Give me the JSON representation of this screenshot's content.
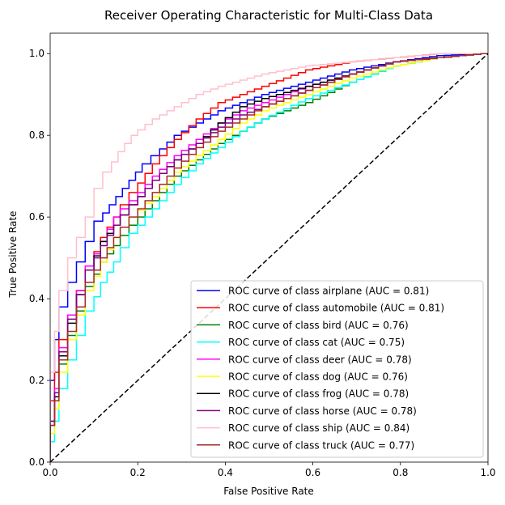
{
  "chart_data": {
    "type": "line",
    "title": "Receiver Operating Characteristic for Multi-Class Data",
    "xlabel": "False Positive Rate",
    "ylabel": "True Positive Rate",
    "xlim": [
      0.0,
      1.0
    ],
    "ylim": [
      0.0,
      1.05
    ],
    "xticks": [
      "0.0",
      "0.2",
      "0.4",
      "0.6",
      "0.8",
      "1.0"
    ],
    "yticks": [
      "0.0",
      "0.2",
      "0.4",
      "0.6",
      "0.8",
      "1.0"
    ],
    "grid": false,
    "legend_position": "lower-right",
    "series": [
      {
        "name": "ROC curve of class airplane (AUC = 0.81)",
        "color": "#0000ff",
        "x": [
          0,
          0,
          0.01,
          0.02,
          0.04,
          0.06,
          0.08,
          0.1,
          0.12,
          0.15,
          0.18,
          0.21,
          0.25,
          0.3,
          0.35,
          0.4,
          0.5,
          0.6,
          0.7,
          0.8,
          0.9,
          1.0
        ],
        "y": [
          0,
          0.12,
          0.2,
          0.3,
          0.38,
          0.44,
          0.49,
          0.54,
          0.59,
          0.63,
          0.67,
          0.71,
          0.75,
          0.8,
          0.83,
          0.86,
          0.9,
          0.93,
          0.96,
          0.98,
          0.995,
          1.0
        ]
      },
      {
        "name": "ROC curve of class automobile (AUC = 0.81)",
        "color": "#ff0000",
        "x": [
          0,
          0,
          0.01,
          0.02,
          0.04,
          0.06,
          0.08,
          0.1,
          0.13,
          0.16,
          0.2,
          0.25,
          0.3,
          0.35,
          0.4,
          0.5,
          0.6,
          0.7,
          0.8,
          0.9,
          1.0
        ],
        "y": [
          0,
          0.08,
          0.15,
          0.22,
          0.3,
          0.36,
          0.42,
          0.48,
          0.55,
          0.6,
          0.66,
          0.73,
          0.79,
          0.84,
          0.88,
          0.92,
          0.96,
          0.98,
          0.99,
          1.0,
          1.0
        ]
      },
      {
        "name": "ROC curve of class bird (AUC = 0.76)",
        "color": "#008000",
        "x": [
          0,
          0.01,
          0.02,
          0.04,
          0.06,
          0.08,
          0.1,
          0.13,
          0.16,
          0.2,
          0.25,
          0.3,
          0.35,
          0.4,
          0.45,
          0.5,
          0.6,
          0.7,
          0.8,
          0.9,
          1.0
        ],
        "y": [
          0,
          0.1,
          0.16,
          0.24,
          0.31,
          0.37,
          0.43,
          0.49,
          0.53,
          0.58,
          0.64,
          0.7,
          0.74,
          0.78,
          0.81,
          0.84,
          0.88,
          0.93,
          0.97,
          0.99,
          1.0
        ]
      },
      {
        "name": "ROC curve of class cat (AUC = 0.75)",
        "color": "#00ffff",
        "x": [
          0,
          0.01,
          0.02,
          0.04,
          0.06,
          0.08,
          0.1,
          0.13,
          0.16,
          0.2,
          0.25,
          0.3,
          0.35,
          0.4,
          0.45,
          0.5,
          0.6,
          0.7,
          0.8,
          0.9,
          1.0
        ],
        "y": [
          0,
          0.05,
          0.1,
          0.18,
          0.25,
          0.31,
          0.37,
          0.44,
          0.49,
          0.56,
          0.62,
          0.68,
          0.73,
          0.77,
          0.81,
          0.84,
          0.89,
          0.93,
          0.97,
          0.99,
          1.0
        ]
      },
      {
        "name": "ROC curve of class deer (AUC = 0.78)",
        "color": "#ff00ff",
        "x": [
          0,
          0.01,
          0.02,
          0.04,
          0.06,
          0.08,
          0.1,
          0.13,
          0.16,
          0.2,
          0.25,
          0.3,
          0.35,
          0.4,
          0.45,
          0.5,
          0.6,
          0.7,
          0.8,
          0.9,
          1.0
        ],
        "y": [
          0,
          0.1,
          0.18,
          0.28,
          0.36,
          0.42,
          0.48,
          0.54,
          0.6,
          0.64,
          0.7,
          0.75,
          0.79,
          0.83,
          0.86,
          0.88,
          0.92,
          0.95,
          0.98,
          0.99,
          1.0
        ]
      },
      {
        "name": "ROC curve of class dog (AUC = 0.76)",
        "color": "#ffff00",
        "x": [
          0,
          0.01,
          0.02,
          0.04,
          0.06,
          0.08,
          0.1,
          0.13,
          0.16,
          0.2,
          0.25,
          0.3,
          0.35,
          0.4,
          0.45,
          0.5,
          0.6,
          0.7,
          0.8,
          0.9,
          1.0
        ],
        "y": [
          0,
          0.07,
          0.13,
          0.22,
          0.3,
          0.36,
          0.42,
          0.49,
          0.55,
          0.6,
          0.65,
          0.71,
          0.75,
          0.79,
          0.83,
          0.86,
          0.9,
          0.94,
          0.97,
          0.99,
          1.0
        ]
      },
      {
        "name": "ROC curve of class frog (AUC = 0.78)",
        "color": "#000000",
        "x": [
          0,
          0.01,
          0.02,
          0.04,
          0.06,
          0.08,
          0.1,
          0.13,
          0.16,
          0.2,
          0.25,
          0.3,
          0.35,
          0.4,
          0.45,
          0.5,
          0.6,
          0.7,
          0.8,
          0.9,
          1.0
        ],
        "y": [
          0,
          0.09,
          0.16,
          0.26,
          0.34,
          0.41,
          0.47,
          0.54,
          0.58,
          0.63,
          0.69,
          0.74,
          0.78,
          0.83,
          0.87,
          0.89,
          0.92,
          0.95,
          0.98,
          0.99,
          1.0
        ]
      },
      {
        "name": "ROC curve of class horse (AUC = 0.78)",
        "color": "#800080",
        "x": [
          0,
          0.01,
          0.02,
          0.04,
          0.06,
          0.08,
          0.1,
          0.13,
          0.16,
          0.2,
          0.25,
          0.3,
          0.35,
          0.4,
          0.45,
          0.5,
          0.6,
          0.7,
          0.8,
          0.9,
          1.0
        ],
        "y": [
          0,
          0.1,
          0.17,
          0.27,
          0.35,
          0.41,
          0.47,
          0.53,
          0.58,
          0.63,
          0.69,
          0.74,
          0.78,
          0.82,
          0.85,
          0.87,
          0.91,
          0.95,
          0.98,
          0.99,
          1.0
        ]
      },
      {
        "name": "ROC curve of class ship (AUC = 0.84)",
        "color": "#ffc0cb",
        "x": [
          0,
          0,
          0.01,
          0.02,
          0.04,
          0.06,
          0.08,
          0.1,
          0.12,
          0.14,
          0.17,
          0.2,
          0.25,
          0.3,
          0.35,
          0.4,
          0.5,
          0.6,
          0.7,
          0.8,
          0.9,
          1.0
        ],
        "y": [
          0,
          0.1,
          0.22,
          0.32,
          0.42,
          0.5,
          0.55,
          0.6,
          0.67,
          0.71,
          0.76,
          0.8,
          0.84,
          0.87,
          0.9,
          0.92,
          0.95,
          0.97,
          0.98,
          0.99,
          1.0,
          1.0
        ]
      },
      {
        "name": "ROC curve of class truck (AUC = 0.77)",
        "color": "#a52a2a",
        "x": [
          0,
          0.01,
          0.02,
          0.04,
          0.06,
          0.08,
          0.1,
          0.13,
          0.16,
          0.2,
          0.25,
          0.3,
          0.35,
          0.4,
          0.45,
          0.5,
          0.6,
          0.7,
          0.8,
          0.9,
          1.0
        ],
        "y": [
          0,
          0.09,
          0.15,
          0.25,
          0.32,
          0.38,
          0.44,
          0.5,
          0.55,
          0.6,
          0.66,
          0.72,
          0.77,
          0.81,
          0.84,
          0.87,
          0.91,
          0.95,
          0.98,
          0.99,
          1.0
        ]
      }
    ],
    "reference_line": {
      "x": [
        0,
        1
      ],
      "y": [
        0,
        1
      ],
      "color": "#000000",
      "style": "dashed"
    }
  }
}
